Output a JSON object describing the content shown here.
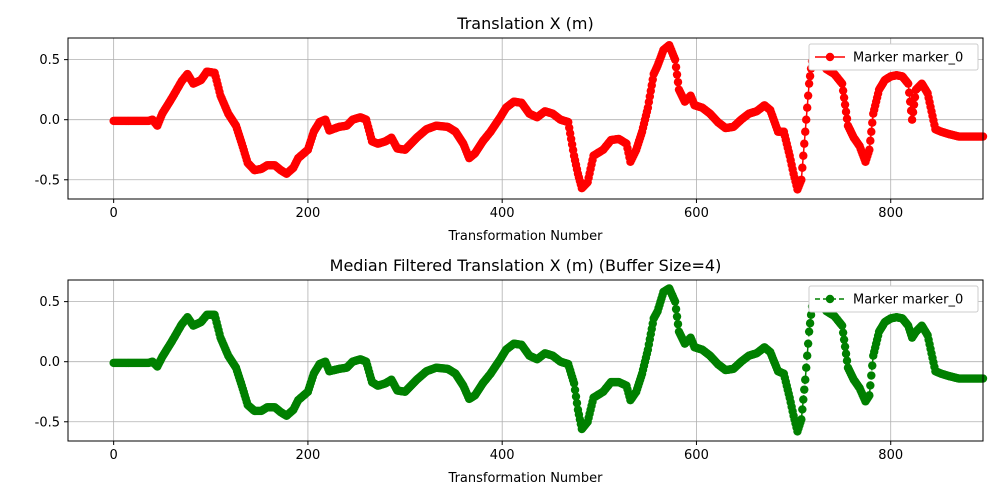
{
  "chart_data": [
    {
      "type": "line",
      "title": "Translation X (m)",
      "xlabel": "Transformation Number",
      "ylabel": "",
      "xlim": [
        -47,
        895
      ],
      "ylim": [
        -0.66,
        0.68
      ],
      "xticks": [
        0,
        200,
        400,
        600,
        800
      ],
      "yticks": [
        -0.5,
        0.0,
        0.5
      ],
      "grid": true,
      "legend_position": "top-right",
      "series": [
        {
          "name": "Marker marker_0",
          "color": "#ff0000",
          "line_style": "solid",
          "marker": "circle",
          "keypoints": [
            [
              0,
              -0.01
            ],
            [
              18,
              -0.01
            ],
            [
              36,
              -0.01
            ],
            [
              40,
              0.0
            ],
            [
              45,
              -0.05
            ],
            [
              50,
              0.05
            ],
            [
              60,
              0.18
            ],
            [
              70,
              0.32
            ],
            [
              76,
              0.38
            ],
            [
              82,
              0.3
            ],
            [
              90,
              0.33
            ],
            [
              96,
              0.4
            ],
            [
              104,
              0.39
            ],
            [
              110,
              0.2
            ],
            [
              118,
              0.05
            ],
            [
              126,
              -0.05
            ],
            [
              132,
              -0.2
            ],
            [
              138,
              -0.36
            ],
            [
              145,
              -0.42
            ],
            [
              152,
              -0.41
            ],
            [
              158,
              -0.38
            ],
            [
              166,
              -0.38
            ],
            [
              172,
              -0.42
            ],
            [
              178,
              -0.45
            ],
            [
              185,
              -0.4
            ],
            [
              190,
              -0.32
            ],
            [
              200,
              -0.25
            ],
            [
              206,
              -0.1
            ],
            [
              212,
              -0.02
            ],
            [
              218,
              0.0
            ],
            [
              222,
              -0.09
            ],
            [
              232,
              -0.06
            ],
            [
              240,
              -0.05
            ],
            [
              246,
              0.0
            ],
            [
              254,
              0.02
            ],
            [
              260,
              0.0
            ],
            [
              266,
              -0.18
            ],
            [
              272,
              -0.2
            ],
            [
              280,
              -0.18
            ],
            [
              286,
              -0.15
            ],
            [
              292,
              -0.24
            ],
            [
              300,
              -0.25
            ],
            [
              306,
              -0.2
            ],
            [
              312,
              -0.15
            ],
            [
              322,
              -0.08
            ],
            [
              332,
              -0.05
            ],
            [
              344,
              -0.06
            ],
            [
              352,
              -0.1
            ],
            [
              360,
              -0.2
            ],
            [
              366,
              -0.32
            ],
            [
              372,
              -0.28
            ],
            [
              380,
              -0.18
            ],
            [
              388,
              -0.1
            ],
            [
              398,
              0.02
            ],
            [
              404,
              0.1
            ],
            [
              412,
              0.15
            ],
            [
              420,
              0.14
            ],
            [
              428,
              0.05
            ],
            [
              436,
              0.02
            ],
            [
              444,
              0.07
            ],
            [
              452,
              0.05
            ],
            [
              460,
              0.0
            ],
            [
              468,
              -0.02
            ],
            [
              474,
              -0.3
            ],
            [
              478,
              -0.45
            ],
            [
              482,
              -0.57
            ],
            [
              488,
              -0.52
            ],
            [
              494,
              -0.3
            ],
            [
              504,
              -0.25
            ],
            [
              512,
              -0.17
            ],
            [
              520,
              -0.16
            ],
            [
              528,
              -0.2
            ],
            [
              532,
              -0.35
            ],
            [
              538,
              -0.25
            ],
            [
              544,
              -0.1
            ],
            [
              550,
              0.1
            ],
            [
              556,
              0.38
            ],
            [
              560,
              0.45
            ],
            [
              566,
              0.58
            ],
            [
              572,
              0.62
            ],
            [
              578,
              0.5
            ],
            [
              582,
              0.25
            ],
            [
              588,
              0.15
            ],
            [
              594,
              0.2
            ],
            [
              598,
              0.12
            ],
            [
              606,
              0.1
            ],
            [
              614,
              0.05
            ],
            [
              622,
              -0.02
            ],
            [
              630,
              -0.07
            ],
            [
              638,
              -0.06
            ],
            [
              646,
              0.0
            ],
            [
              654,
              0.05
            ],
            [
              662,
              0.07
            ],
            [
              670,
              0.12
            ],
            [
              676,
              0.08
            ],
            [
              684,
              -0.1
            ],
            [
              690,
              -0.1
            ],
            [
              696,
              -0.3
            ],
            [
              700,
              -0.45
            ],
            [
              704,
              -0.58
            ],
            [
              708,
              -0.5
            ],
            [
              712,
              -0.1
            ],
            [
              716,
              0.3
            ],
            [
              720,
              0.55
            ],
            [
              726,
              0.5
            ],
            [
              734,
              0.42
            ],
            [
              742,
              0.38
            ],
            [
              750,
              0.3
            ],
            [
              756,
              -0.05
            ],
            [
              762,
              -0.15
            ],
            [
              768,
              -0.22
            ],
            [
              774,
              -0.35
            ],
            [
              778,
              -0.25
            ],
            [
              782,
              0.05
            ],
            [
              788,
              0.25
            ],
            [
              794,
              0.33
            ],
            [
              800,
              0.36
            ],
            [
              806,
              0.37
            ],
            [
              812,
              0.36
            ],
            [
              818,
              0.3
            ],
            [
              822,
              0.0
            ],
            [
              826,
              0.25
            ],
            [
              832,
              0.3
            ],
            [
              838,
              0.22
            ],
            [
              846,
              -0.08
            ],
            [
              852,
              -0.1
            ],
            [
              860,
              -0.12
            ],
            [
              870,
              -0.14
            ],
            [
              880,
              -0.14
            ],
            [
              895,
              -0.14
            ]
          ]
        }
      ]
    },
    {
      "type": "line",
      "title": "Median Filtered Translation X (m) (Buffer Size=4)",
      "xlabel": "Transformation Number",
      "ylabel": "",
      "xlim": [
        -47,
        895
      ],
      "ylim": [
        -0.66,
        0.68
      ],
      "xticks": [
        0,
        200,
        400,
        600,
        800
      ],
      "yticks": [
        -0.5,
        0.0,
        0.5
      ],
      "grid": true,
      "legend_position": "top-right",
      "series": [
        {
          "name": "Marker marker_0",
          "color": "#008000",
          "line_style": "dashed",
          "marker": "circle",
          "keypoints": [
            [
              0,
              -0.01
            ],
            [
              18,
              -0.01
            ],
            [
              36,
              -0.01
            ],
            [
              40,
              0.0
            ],
            [
              45,
              -0.04
            ],
            [
              50,
              0.04
            ],
            [
              60,
              0.17
            ],
            [
              70,
              0.31
            ],
            [
              76,
              0.37
            ],
            [
              82,
              0.3
            ],
            [
              90,
              0.33
            ],
            [
              96,
              0.39
            ],
            [
              104,
              0.39
            ],
            [
              110,
              0.2
            ],
            [
              118,
              0.05
            ],
            [
              126,
              -0.05
            ],
            [
              132,
              -0.2
            ],
            [
              138,
              -0.36
            ],
            [
              145,
              -0.41
            ],
            [
              152,
              -0.41
            ],
            [
              158,
              -0.38
            ],
            [
              166,
              -0.38
            ],
            [
              172,
              -0.42
            ],
            [
              178,
              -0.45
            ],
            [
              185,
              -0.4
            ],
            [
              190,
              -0.32
            ],
            [
              200,
              -0.25
            ],
            [
              206,
              -0.1
            ],
            [
              212,
              -0.02
            ],
            [
              218,
              0.0
            ],
            [
              222,
              -0.08
            ],
            [
              232,
              -0.06
            ],
            [
              240,
              -0.05
            ],
            [
              246,
              0.0
            ],
            [
              254,
              0.02
            ],
            [
              260,
              0.0
            ],
            [
              266,
              -0.17
            ],
            [
              272,
              -0.2
            ],
            [
              280,
              -0.18
            ],
            [
              286,
              -0.15
            ],
            [
              292,
              -0.24
            ],
            [
              300,
              -0.25
            ],
            [
              306,
              -0.2
            ],
            [
              312,
              -0.15
            ],
            [
              322,
              -0.08
            ],
            [
              332,
              -0.05
            ],
            [
              344,
              -0.06
            ],
            [
              352,
              -0.1
            ],
            [
              360,
              -0.2
            ],
            [
              366,
              -0.31
            ],
            [
              372,
              -0.28
            ],
            [
              380,
              -0.18
            ],
            [
              388,
              -0.1
            ],
            [
              398,
              0.02
            ],
            [
              404,
              0.1
            ],
            [
              412,
              0.15
            ],
            [
              420,
              0.14
            ],
            [
              428,
              0.05
            ],
            [
              436,
              0.02
            ],
            [
              444,
              0.07
            ],
            [
              452,
              0.05
            ],
            [
              460,
              0.0
            ],
            [
              468,
              -0.02
            ],
            [
              474,
              -0.18
            ],
            [
              478,
              -0.4
            ],
            [
              482,
              -0.56
            ],
            [
              488,
              -0.5
            ],
            [
              494,
              -0.3
            ],
            [
              504,
              -0.25
            ],
            [
              512,
              -0.17
            ],
            [
              520,
              -0.17
            ],
            [
              528,
              -0.2
            ],
            [
              532,
              -0.32
            ],
            [
              538,
              -0.25
            ],
            [
              544,
              -0.1
            ],
            [
              550,
              0.1
            ],
            [
              556,
              0.36
            ],
            [
              560,
              0.42
            ],
            [
              566,
              0.58
            ],
            [
              572,
              0.61
            ],
            [
              578,
              0.5
            ],
            [
              582,
              0.25
            ],
            [
              588,
              0.15
            ],
            [
              594,
              0.2
            ],
            [
              598,
              0.12
            ],
            [
              606,
              0.1
            ],
            [
              614,
              0.05
            ],
            [
              622,
              -0.02
            ],
            [
              630,
              -0.07
            ],
            [
              638,
              -0.06
            ],
            [
              646,
              0.0
            ],
            [
              654,
              0.05
            ],
            [
              662,
              0.07
            ],
            [
              670,
              0.12
            ],
            [
              676,
              0.08
            ],
            [
              684,
              -0.08
            ],
            [
              690,
              -0.1
            ],
            [
              696,
              -0.3
            ],
            [
              700,
              -0.45
            ],
            [
              704,
              -0.58
            ],
            [
              708,
              -0.48
            ],
            [
              712,
              -0.15
            ],
            [
              716,
              0.25
            ],
            [
              720,
              0.53
            ],
            [
              726,
              0.5
            ],
            [
              734,
              0.42
            ],
            [
              742,
              0.38
            ],
            [
              750,
              0.3
            ],
            [
              756,
              -0.05
            ],
            [
              762,
              -0.15
            ],
            [
              768,
              -0.22
            ],
            [
              774,
              -0.33
            ],
            [
              778,
              -0.28
            ],
            [
              782,
              0.05
            ],
            [
              788,
              0.25
            ],
            [
              794,
              0.33
            ],
            [
              800,
              0.36
            ],
            [
              806,
              0.37
            ],
            [
              812,
              0.36
            ],
            [
              818,
              0.3
            ],
            [
              822,
              0.2
            ],
            [
              826,
              0.25
            ],
            [
              832,
              0.3
            ],
            [
              838,
              0.22
            ],
            [
              846,
              -0.08
            ],
            [
              852,
              -0.1
            ],
            [
              860,
              -0.12
            ],
            [
              870,
              -0.14
            ],
            [
              880,
              -0.14
            ],
            [
              895,
              -0.14
            ]
          ]
        }
      ]
    }
  ]
}
